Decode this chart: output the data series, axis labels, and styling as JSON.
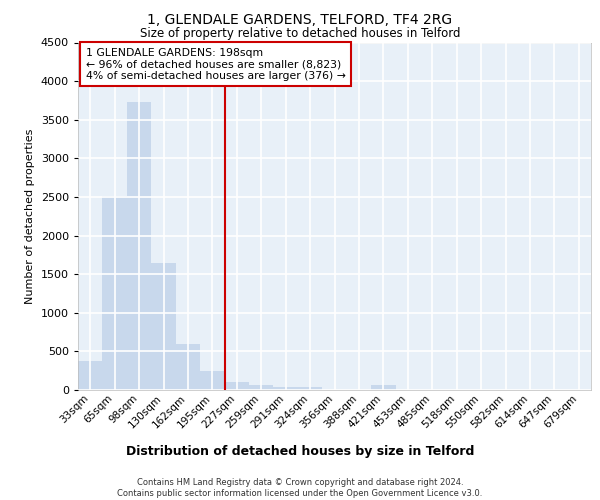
{
  "title_line1": "1, GLENDALE GARDENS, TELFORD, TF4 2RG",
  "title_line2": "Size of property relative to detached houses in Telford",
  "xlabel": "Distribution of detached houses by size in Telford",
  "ylabel": "Number of detached properties",
  "footnote": "Contains HM Land Registry data © Crown copyright and database right 2024.\nContains public sector information licensed under the Open Government Licence v3.0.",
  "categories": [
    "33sqm",
    "65sqm",
    "98sqm",
    "130sqm",
    "162sqm",
    "195sqm",
    "227sqm",
    "259sqm",
    "291sqm",
    "324sqm",
    "356sqm",
    "388sqm",
    "421sqm",
    "453sqm",
    "485sqm",
    "518sqm",
    "550sqm",
    "582sqm",
    "614sqm",
    "647sqm",
    "679sqm"
  ],
  "values": [
    380,
    2510,
    3730,
    1640,
    600,
    250,
    105,
    60,
    45,
    45,
    0,
    0,
    60,
    0,
    0,
    0,
    0,
    0,
    0,
    0,
    0
  ],
  "bar_color": "#c8d8ec",
  "bar_edge_color": "#c8d8ec",
  "bg_color": "#e8f0f8",
  "grid_color": "#ffffff",
  "annotation_text": "1 GLENDALE GARDENS: 198sqm\n← 96% of detached houses are smaller (8,823)\n4% of semi-detached houses are larger (376) →",
  "annotation_box_color": "#ffffff",
  "annotation_box_edge": "#cc0000",
  "vline_x": 5.5,
  "vline_color": "#cc0000",
  "ylim": [
    0,
    4500
  ],
  "yticks": [
    0,
    500,
    1000,
    1500,
    2000,
    2500,
    3000,
    3500,
    4000,
    4500
  ]
}
